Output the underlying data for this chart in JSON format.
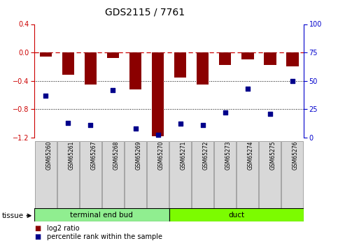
{
  "title": "GDS2115 / 7761",
  "samples": [
    "GSM65260",
    "GSM65261",
    "GSM65267",
    "GSM65268",
    "GSM65269",
    "GSM65270",
    "GSM65271",
    "GSM65272",
    "GSM65273",
    "GSM65274",
    "GSM65275",
    "GSM65276"
  ],
  "log2_ratio": [
    -0.06,
    -0.32,
    -0.45,
    -0.08,
    -0.52,
    -1.18,
    -0.35,
    -0.45,
    -0.18,
    -0.1,
    -0.18,
    -0.2
  ],
  "percentile_rank": [
    37,
    13,
    11,
    42,
    8,
    2,
    12,
    11,
    22,
    43,
    21,
    50
  ],
  "bar_color": "#8b0000",
  "dot_color": "#00008b",
  "ylim_left": [
    -1.2,
    0.4
  ],
  "ylim_right": [
    0,
    100
  ],
  "yticks_left": [
    0.4,
    0.0,
    -0.4,
    -0.8,
    -1.2
  ],
  "yticks_right": [
    100,
    75,
    50,
    25,
    0
  ],
  "dotted_hlines": [
    -0.4,
    -0.8
  ],
  "background_color": "#ffffff",
  "left_axis_color": "#cc0000",
  "right_axis_color": "#0000cc",
  "group_info": [
    {
      "label": "terminal end bud",
      "start": 0,
      "end": 6,
      "color": "#90ee90"
    },
    {
      "label": "duct",
      "start": 6,
      "end": 12,
      "color": "#7cfc00"
    }
  ]
}
